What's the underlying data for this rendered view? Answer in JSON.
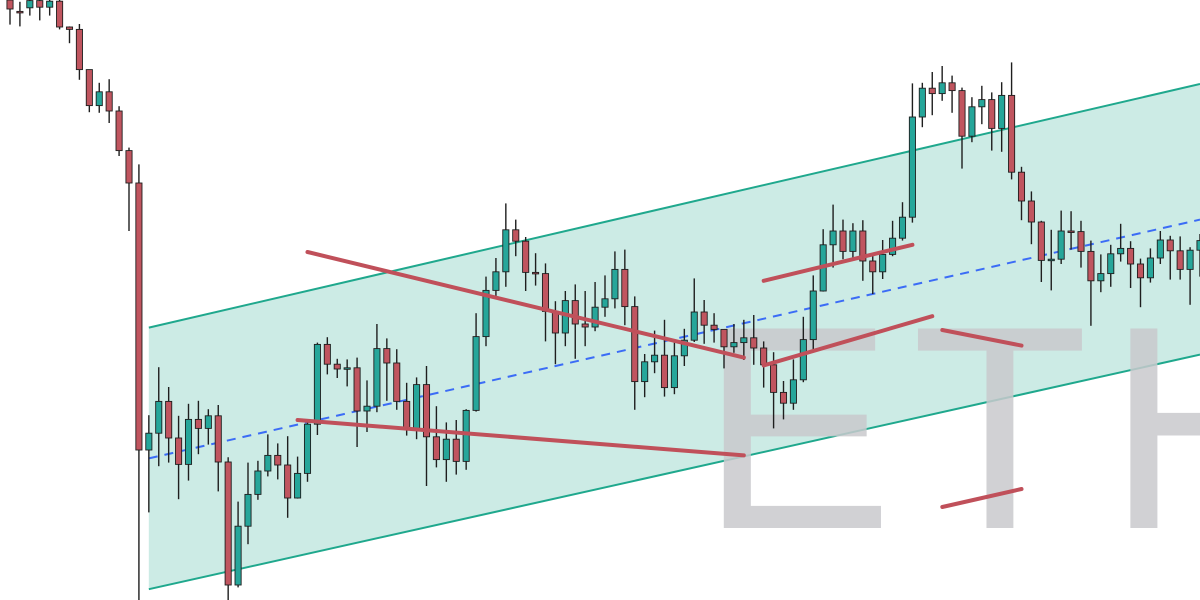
{
  "watermark": "ETH",
  "colors": {
    "background": "#ffffff",
    "up": "#26a69a",
    "down": "#c0555f",
    "wick": "#1e1e1e",
    "channel_fill": "#bfe6df",
    "channel_line": "#1fa88d",
    "midline": "#3b6cf6",
    "trendline": "#c0505a",
    "watermark": "#c9cacd"
  },
  "chart_data": {
    "type": "candlestick",
    "title": "",
    "xlabel": "",
    "ylabel": "",
    "xlim": [
      0,
      120
    ],
    "ylim": [
      0,
      100
    ],
    "grid": false,
    "legend": "none",
    "candles": [
      [
        0,
        100.0,
        98.5,
        99.6,
        95.9
      ],
      [
        1,
        98.1,
        98.0,
        99.7,
        95.6
      ],
      [
        2,
        98.7,
        99.9,
        101.1,
        97.4
      ],
      [
        3,
        99.9,
        98.8,
        101.5,
        96.6
      ],
      [
        4,
        98.8,
        99.8,
        102.0,
        97.4
      ],
      [
        5,
        99.8,
        95.5,
        100.2,
        95.1
      ],
      [
        6,
        95.5,
        95.1,
        95.6,
        92.8
      ],
      [
        7,
        95.1,
        88.4,
        96.0,
        86.7
      ],
      [
        8,
        88.4,
        82.4,
        88.4,
        81.3
      ],
      [
        9,
        82.4,
        84.7,
        86.2,
        81.2
      ],
      [
        10,
        84.7,
        81.5,
        86.8,
        79.5
      ],
      [
        11,
        81.5,
        74.9,
        82.3,
        74.0
      ],
      [
        12,
        74.9,
        69.5,
        75.4,
        61.5
      ],
      [
        13,
        69.5,
        25.0,
        72.6,
        0.0
      ],
      [
        14,
        25.0,
        27.8,
        30.8,
        14.6
      ],
      [
        15,
        27.8,
        33.1,
        38.8,
        22.3
      ],
      [
        16,
        33.1,
        27.0,
        35.5,
        22.9
      ],
      [
        17,
        27.0,
        22.6,
        30.7,
        16.8
      ],
      [
        18,
        22.6,
        30.1,
        32.7,
        19.9
      ],
      [
        19,
        30.1,
        28.6,
        33.2,
        24.3
      ],
      [
        20,
        28.6,
        30.7,
        31.8,
        25.9
      ],
      [
        21,
        30.7,
        23.0,
        32.5,
        18.1
      ],
      [
        22,
        23.0,
        2.5,
        23.8,
        0.0
      ],
      [
        23,
        2.5,
        12.3,
        16.4,
        2.1
      ],
      [
        24,
        12.3,
        17.6,
        22.9,
        9.3
      ],
      [
        25,
        17.6,
        21.5,
        23.2,
        16.7
      ],
      [
        26,
        21.5,
        24.1,
        27.6,
        20.6
      ],
      [
        27,
        24.1,
        22.5,
        26.1,
        20.1
      ],
      [
        28,
        22.5,
        17.0,
        27.3,
        13.7
      ],
      [
        29,
        17.0,
        21.1,
        23.9,
        16.9
      ],
      [
        30,
        21.1,
        29.3,
        30.1,
        19.7
      ],
      [
        31,
        29.3,
        42.6,
        42.9,
        27.5
      ],
      [
        32,
        42.6,
        39.3,
        43.8,
        37.6
      ],
      [
        33,
        39.3,
        38.5,
        40.2,
        37.0
      ],
      [
        34,
        38.5,
        38.7,
        40.1,
        35.6
      ],
      [
        35,
        38.7,
        31.5,
        40.4,
        25.5
      ],
      [
        36,
        31.5,
        32.3,
        36.6,
        28.0
      ],
      [
        37,
        32.3,
        41.9,
        46.0,
        31.3
      ],
      [
        38,
        41.9,
        39.5,
        43.6,
        33.2
      ],
      [
        39,
        39.5,
        33.1,
        41.8,
        31.7
      ],
      [
        40,
        33.1,
        28.5,
        36.2,
        27.4
      ],
      [
        41,
        28.5,
        35.9,
        37.1,
        26.8
      ],
      [
        42,
        35.9,
        27.2,
        39.0,
        19.0
      ],
      [
        43,
        27.2,
        23.4,
        32.3,
        22.1
      ],
      [
        44,
        23.4,
        26.8,
        29.6,
        19.7
      ],
      [
        45,
        26.8,
        23.1,
        30.0,
        20.9
      ],
      [
        46,
        23.1,
        31.6,
        31.8,
        21.7
      ],
      [
        47,
        31.6,
        43.9,
        47.8,
        31.4
      ],
      [
        48,
        43.9,
        51.6,
        53.9,
        42.3
      ],
      [
        49,
        51.6,
        54.7,
        57.0,
        50.5
      ],
      [
        50,
        54.7,
        61.7,
        66.1,
        52.2
      ],
      [
        51,
        61.7,
        59.8,
        63.4,
        57.3
      ],
      [
        52,
        59.8,
        54.6,
        60.5,
        51.5
      ],
      [
        53,
        54.6,
        54.4,
        57.8,
        52.4
      ],
      [
        54,
        54.4,
        48.1,
        56.1,
        43.1
      ],
      [
        55,
        48.1,
        44.5,
        49.8,
        39.3
      ],
      [
        56,
        44.5,
        49.9,
        51.5,
        42.3
      ],
      [
        57,
        49.9,
        46.0,
        52.6,
        40.2
      ],
      [
        58,
        46.0,
        45.5,
        51.5,
        42.3
      ],
      [
        59,
        45.5,
        48.8,
        53.0,
        44.8
      ],
      [
        60,
        48.8,
        50.2,
        54.1,
        47.2
      ],
      [
        61,
        50.2,
        55.1,
        58.1,
        48.6
      ],
      [
        62,
        55.1,
        48.9,
        58.4,
        45.8
      ],
      [
        63,
        48.9,
        36.4,
        50.6,
        31.7
      ],
      [
        64,
        36.4,
        39.7,
        41.0,
        33.8
      ],
      [
        65,
        39.7,
        40.8,
        44.9,
        37.8
      ],
      [
        66,
        40.8,
        35.4,
        46.7,
        33.9
      ],
      [
        67,
        35.4,
        40.7,
        43.3,
        34.3
      ],
      [
        68,
        40.7,
        43.3,
        45.2,
        39.0
      ],
      [
        69,
        43.3,
        48.0,
        53.6,
        43.0
      ],
      [
        70,
        48.0,
        45.8,
        50.0,
        42.7
      ],
      [
        71,
        45.8,
        45.1,
        47.8,
        42.9
      ],
      [
        72,
        45.1,
        42.2,
        45.1,
        38.6
      ],
      [
        73,
        42.2,
        42.9,
        46.0,
        41.2
      ],
      [
        74,
        42.9,
        43.7,
        46.7,
        40.0
      ],
      [
        75,
        43.7,
        42.0,
        47.5,
        39.2
      ],
      [
        76,
        42.0,
        39.2,
        43.1,
        35.4
      ],
      [
        77,
        39.2,
        34.6,
        41.3,
        28.6
      ],
      [
        78,
        34.6,
        32.8,
        36.5,
        30.1
      ],
      [
        79,
        32.8,
        36.7,
        40.1,
        31.7
      ],
      [
        80,
        36.7,
        43.4,
        47.2,
        36.3
      ],
      [
        81,
        43.4,
        51.5,
        54.1,
        41.5
      ],
      [
        82,
        51.5,
        59.2,
        61.8,
        51.4
      ],
      [
        83,
        59.2,
        61.5,
        65.9,
        55.4
      ],
      [
        84,
        61.5,
        58.1,
        63.4,
        56.8
      ],
      [
        85,
        58.1,
        61.5,
        62.8,
        56.7
      ],
      [
        86,
        61.5,
        56.5,
        63.3,
        53.2
      ],
      [
        87,
        56.5,
        54.7,
        57.6,
        51.0
      ],
      [
        88,
        54.7,
        57.6,
        60.0,
        53.5
      ],
      [
        89,
        57.6,
        60.3,
        63.2,
        57.3
      ],
      [
        90,
        60.3,
        63.8,
        66.3,
        59.9
      ],
      [
        91,
        63.8,
        80.5,
        86.1,
        62.9
      ],
      [
        92,
        80.5,
        85.3,
        86.2,
        78.8
      ],
      [
        93,
        85.3,
        84.4,
        88.0,
        80.8
      ],
      [
        94,
        84.4,
        86.2,
        89.0,
        83.2
      ],
      [
        95,
        86.2,
        84.9,
        87.4,
        81.2
      ],
      [
        96,
        84.9,
        77.3,
        85.4,
        71.9
      ],
      [
        97,
        77.3,
        82.2,
        83.8,
        76.3
      ],
      [
        98,
        82.2,
        83.4,
        85.7,
        79.3
      ],
      [
        99,
        83.4,
        78.6,
        84.6,
        74.9
      ],
      [
        100,
        78.6,
        84.1,
        86.3,
        74.7
      ],
      [
        101,
        84.1,
        71.3,
        89.6,
        70.1
      ],
      [
        102,
        71.3,
        66.5,
        72.2,
        63.3
      ],
      [
        103,
        66.5,
        63.0,
        68.1,
        59.3
      ],
      [
        104,
        63.0,
        56.6,
        63.2,
        53.0
      ],
      [
        105,
        56.6,
        56.8,
        61.7,
        51.6
      ],
      [
        106,
        56.8,
        61.5,
        64.9,
        56.0
      ],
      [
        107,
        61.5,
        61.4,
        64.8,
        58.4
      ],
      [
        108,
        61.4,
        58.1,
        63.2,
        55.4
      ],
      [
        109,
        58.1,
        53.2,
        59.9,
        45.7
      ],
      [
        110,
        53.2,
        54.4,
        57.6,
        51.3
      ],
      [
        111,
        54.4,
        57.7,
        59.2,
        52.2
      ],
      [
        112,
        57.7,
        58.6,
        62.7,
        56.4
      ],
      [
        113,
        58.6,
        56.0,
        59.8,
        52.0
      ],
      [
        114,
        56.0,
        53.7,
        56.9,
        48.8
      ],
      [
        115,
        53.7,
        57.0,
        58.6,
        52.9
      ],
      [
        116,
        57.0,
        60.0,
        61.5,
        56.0
      ],
      [
        117,
        60.0,
        58.2,
        60.7,
        53.4
      ],
      [
        118,
        58.2,
        55.1,
        60.6,
        53.4
      ],
      [
        119,
        55.1,
        58.3,
        58.8,
        49.2
      ],
      [
        120,
        58.3,
        59.9,
        61.0,
        53.9
      ]
    ],
    "channel": {
      "upper": [
        [
          14,
          45.4
        ],
        [
          120,
          86.0
        ]
      ],
      "lower": [
        [
          14,
          1.8
        ],
        [
          120,
          40.9
        ]
      ],
      "mid": [
        [
          14,
          23.6
        ],
        [
          120,
          63.4
        ]
      ]
    },
    "trendlines": [
      [
        [
          30,
          58.0
        ],
        [
          74,
          40.4
        ]
      ],
      [
        [
          29,
          30.0
        ],
        [
          74,
          24.1
        ]
      ],
      [
        [
          76,
          53.2
        ],
        [
          91,
          59.2
        ]
      ],
      [
        [
          76,
          39.1
        ],
        [
          93,
          47.3
        ]
      ]
    ],
    "trendlines_clipped": [
      [
        [
          92,
          45.0
        ],
        [
          102,
          42.4
        ]
      ],
      [
        [
          92,
          15.5
        ],
        [
          102,
          18.5
        ]
      ]
    ]
  }
}
